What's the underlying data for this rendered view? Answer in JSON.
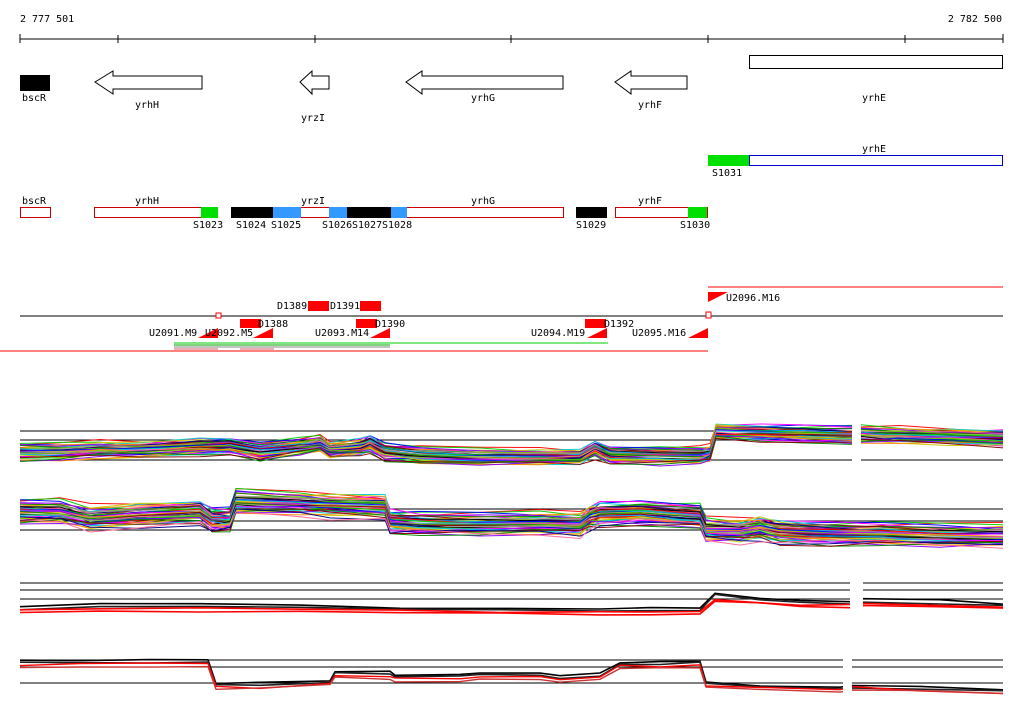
{
  "ruler": {
    "start_label": "2 777 501",
    "end_label": "2 782 500"
  },
  "genes_track": [
    {
      "label": "bscR",
      "kind": "block"
    },
    {
      "label": "yrhH",
      "kind": "arrow-left"
    },
    {
      "label": "yrzI",
      "kind": "arrow-left"
    },
    {
      "label": "yrhG",
      "kind": "arrow-left"
    },
    {
      "label": "yrhF",
      "kind": "arrow-left"
    },
    {
      "label": "yrhE",
      "kind": "box"
    }
  ],
  "second_track": {
    "gene_label": "yrhE",
    "segment_label": "S1031"
  },
  "segments_track": {
    "gene_labels": [
      "bscR",
      "yrhH",
      "yrzI",
      "yrhG",
      "yrhF"
    ],
    "segment_labels": [
      "S1023",
      "S1024",
      "S1025",
      "S1026",
      "S1027",
      "S1028",
      "S1029",
      "S1030"
    ]
  },
  "features_track": {
    "labels": [
      "D1389",
      "D1391",
      "D1388",
      "D1390",
      "D1392",
      "U2091.M9",
      "U2092.M5",
      "U2093.M14",
      "U2094.M19",
      "U2095.M16",
      "U2096.M16"
    ]
  },
  "colors": {
    "gene_outline": "#cc0000",
    "segment_green": "#00e000",
    "segment_black": "#000000",
    "segment_blue": "#3399ff",
    "feature_red": "#ff0000",
    "box_blue": "#0000cc"
  }
}
